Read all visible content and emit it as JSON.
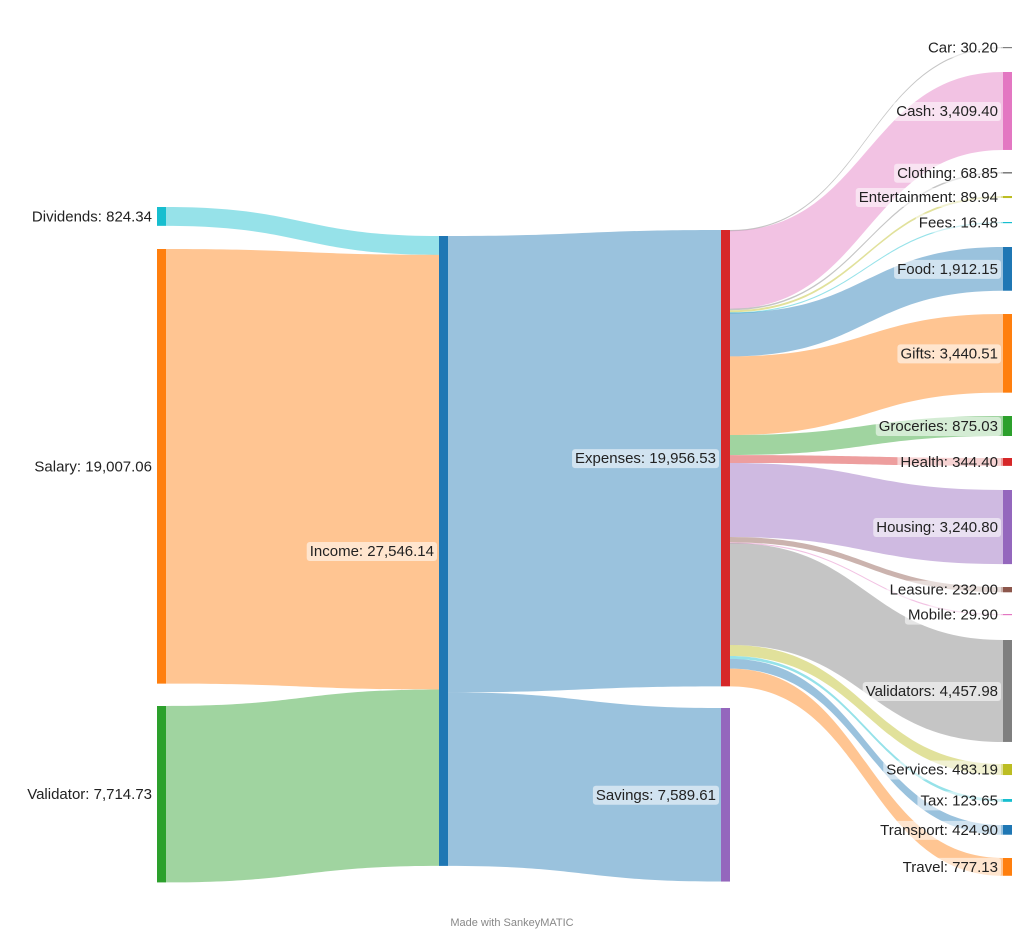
{
  "footer": "Made with SankeyMATIC",
  "chart_data": {
    "type": "sankey",
    "nodes": [
      {
        "id": "dividends",
        "label": "Dividends: 824.34",
        "color": "#17becf",
        "value": 824.34
      },
      {
        "id": "salary",
        "label": "Salary: 19,007.06",
        "color": "#ff7f0e",
        "value": 19007.06
      },
      {
        "id": "validator",
        "label": "Validator: 7,714.73",
        "color": "#2ca02c",
        "value": 7714.73
      },
      {
        "id": "income",
        "label": "Income: 27,546.14",
        "color": "#1f77b4",
        "value": 27546.14
      },
      {
        "id": "expenses",
        "label": "Expenses: 19,956.53",
        "color": "#d62728",
        "value": 19956.53
      },
      {
        "id": "savings",
        "label": "Savings: 7,589.61",
        "color": "#9467bd",
        "value": 7589.61
      },
      {
        "id": "car",
        "label": "Car: 30.20",
        "color": "#7f7f7f",
        "value": 30.2
      },
      {
        "id": "cash",
        "label": "Cash: 3,409.40",
        "color": "#e377c2",
        "value": 3409.4
      },
      {
        "id": "clothing",
        "label": "Clothing: 68.85",
        "color": "#7f7f7f",
        "value": 68.85
      },
      {
        "id": "entertainment",
        "label": "Entertainment: 89.94",
        "color": "#bcbd22",
        "value": 89.94
      },
      {
        "id": "fees",
        "label": "Fees: 16.48",
        "color": "#17becf",
        "value": 16.48
      },
      {
        "id": "food",
        "label": "Food: 1,912.15",
        "color": "#1f77b4",
        "value": 1912.15
      },
      {
        "id": "gifts",
        "label": "Gifts: 3,440.51",
        "color": "#ff7f0e",
        "value": 3440.51
      },
      {
        "id": "groceries",
        "label": "Groceries: 875.03",
        "color": "#2ca02c",
        "value": 875.03
      },
      {
        "id": "health",
        "label": "Health: 344.40",
        "color": "#d62728",
        "value": 344.4
      },
      {
        "id": "housing",
        "label": "Housing: 3,240.80",
        "color": "#9467bd",
        "value": 3240.8
      },
      {
        "id": "leasure",
        "label": "Leasure: 232.00",
        "color": "#8c564b",
        "value": 232.0
      },
      {
        "id": "mobile",
        "label": "Mobile: 29.90",
        "color": "#e377c2",
        "value": 29.9
      },
      {
        "id": "validators",
        "label": "Validators: 4,457.98",
        "color": "#7f7f7f",
        "value": 4457.98
      },
      {
        "id": "services",
        "label": "Services: 483.19",
        "color": "#bcbd22",
        "value": 483.19
      },
      {
        "id": "tax",
        "label": "Tax: 123.65",
        "color": "#17becf",
        "value": 123.65
      },
      {
        "id": "transport",
        "label": "Transport: 424.90",
        "color": "#1f77b4",
        "value": 424.9
      },
      {
        "id": "travel",
        "label": "Travel: 777.13",
        "color": "#ff7f0e",
        "value": 777.13
      }
    ],
    "links": [
      {
        "source": "dividends",
        "target": "income",
        "value": 824.34,
        "color": "#17becf"
      },
      {
        "source": "salary",
        "target": "income",
        "value": 19007.06,
        "color": "#ff7f0e"
      },
      {
        "source": "validator",
        "target": "income",
        "value": 7714.73,
        "color": "#2ca02c"
      },
      {
        "source": "income",
        "target": "expenses",
        "value": 19956.53,
        "color": "#1f77b4"
      },
      {
        "source": "income",
        "target": "savings",
        "value": 7589.61,
        "color": "#1f77b4"
      },
      {
        "source": "expenses",
        "target": "car",
        "value": 30.2,
        "color": "#7f7f7f"
      },
      {
        "source": "expenses",
        "target": "cash",
        "value": 3409.4,
        "color": "#e377c2"
      },
      {
        "source": "expenses",
        "target": "clothing",
        "value": 68.85,
        "color": "#7f7f7f"
      },
      {
        "source": "expenses",
        "target": "entertainment",
        "value": 89.94,
        "color": "#bcbd22"
      },
      {
        "source": "expenses",
        "target": "fees",
        "value": 16.48,
        "color": "#17becf"
      },
      {
        "source": "expenses",
        "target": "food",
        "value": 1912.15,
        "color": "#1f77b4"
      },
      {
        "source": "expenses",
        "target": "gifts",
        "value": 3440.51,
        "color": "#ff7f0e"
      },
      {
        "source": "expenses",
        "target": "groceries",
        "value": 875.03,
        "color": "#2ca02c"
      },
      {
        "source": "expenses",
        "target": "health",
        "value": 344.4,
        "color": "#d62728"
      },
      {
        "source": "expenses",
        "target": "housing",
        "value": 3240.8,
        "color": "#9467bd"
      },
      {
        "source": "expenses",
        "target": "leasure",
        "value": 232.0,
        "color": "#8c564b"
      },
      {
        "source": "expenses",
        "target": "mobile",
        "value": 29.9,
        "color": "#e377c2"
      },
      {
        "source": "expenses",
        "target": "validators",
        "value": 4457.98,
        "color": "#7f7f7f"
      },
      {
        "source": "expenses",
        "target": "services",
        "value": 483.19,
        "color": "#bcbd22"
      },
      {
        "source": "expenses",
        "target": "tax",
        "value": 123.65,
        "color": "#17becf"
      },
      {
        "source": "expenses",
        "target": "transport",
        "value": 424.9,
        "color": "#1f77b4"
      },
      {
        "source": "expenses",
        "target": "travel",
        "value": 777.13,
        "color": "#ff7f0e"
      }
    ]
  }
}
